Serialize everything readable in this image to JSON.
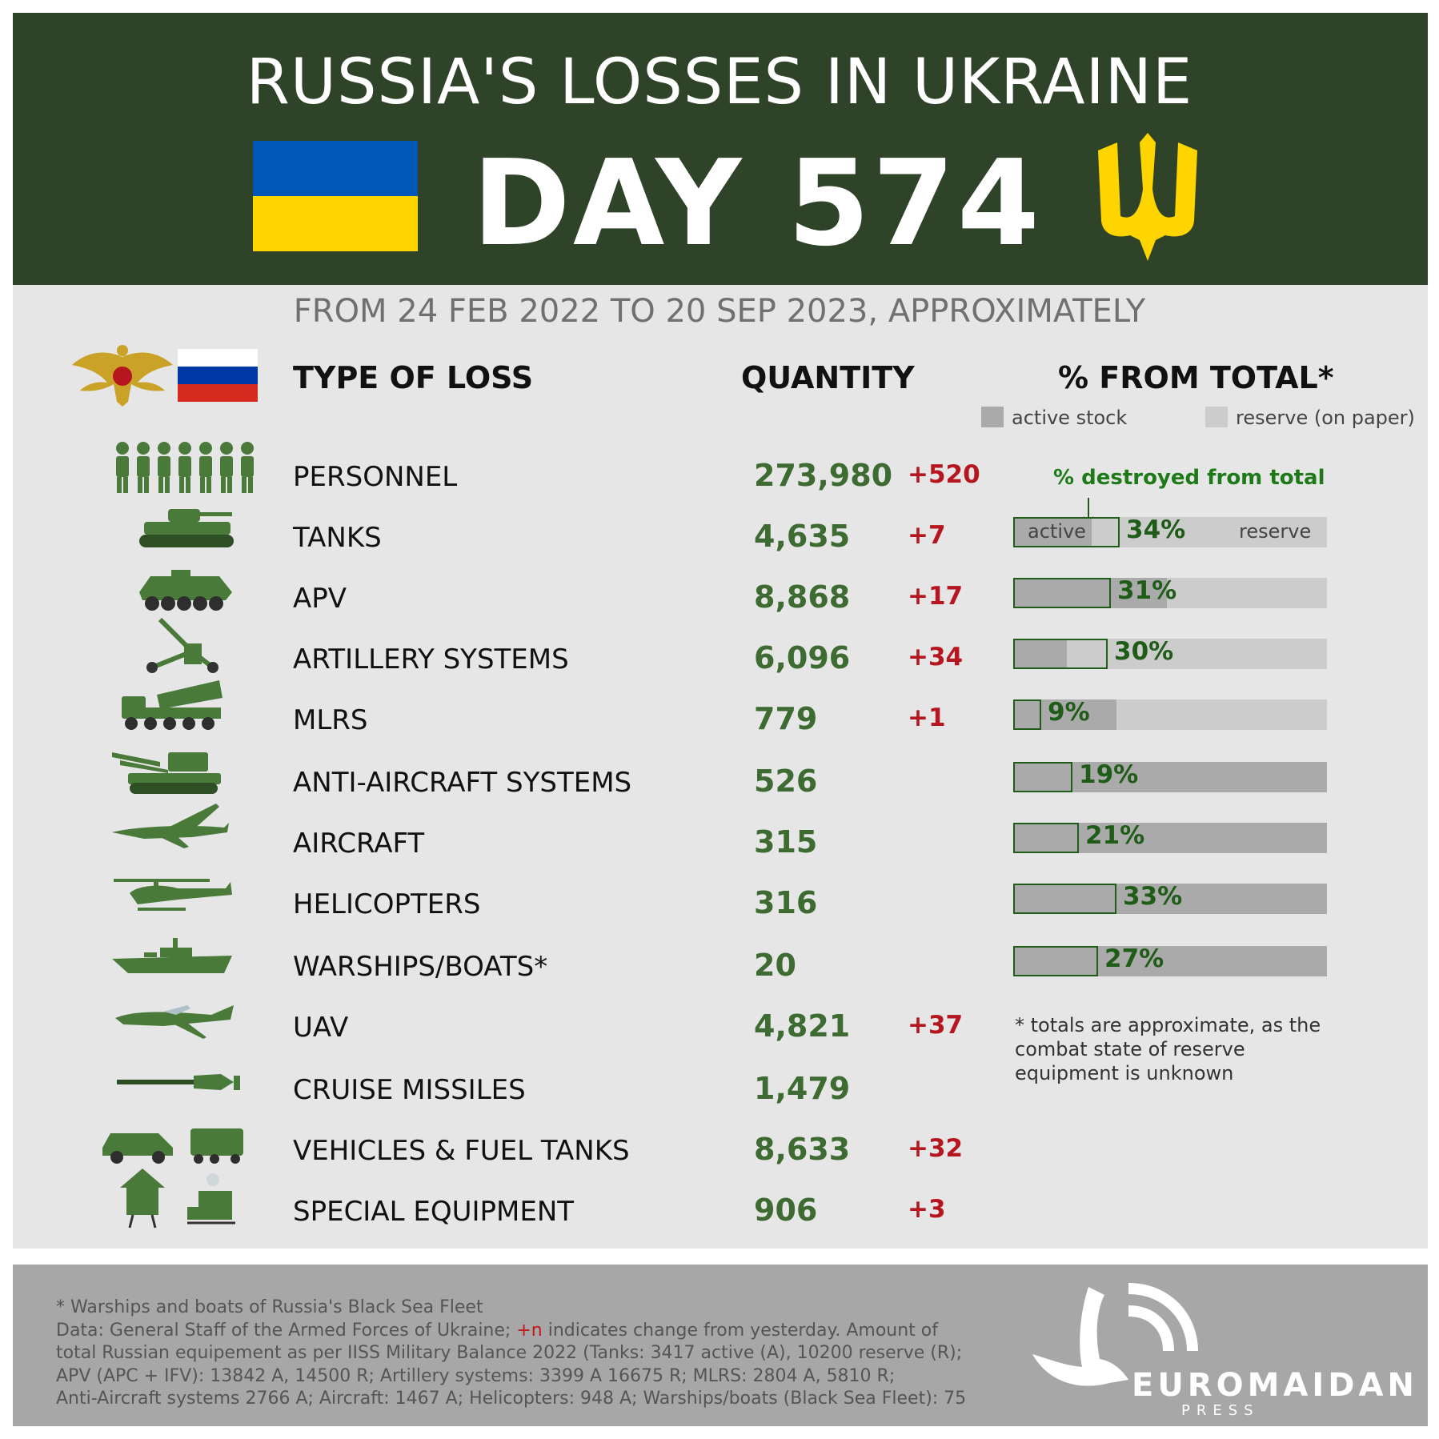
{
  "header": {
    "title": "RUSSIA'S LOSSES IN UKRAINE",
    "day": "DAY 574",
    "subtitle": "FROM 24 FEB 2022 TO 20 SEP 2023, APPROXIMATELY"
  },
  "columns": {
    "type": "TYPE OF LOSS",
    "quantity": "QUANTITY",
    "percent": "% FROM TOTAL*"
  },
  "legend": {
    "active": "active stock",
    "reserve": "reserve (on paper)",
    "destroyed_note": "% destroyed from total",
    "bar_active": "active",
    "bar_reserve": "reserve"
  },
  "colors": {
    "header_bg": "#2e4328",
    "quantity": "#3e6b32",
    "delta": "#b5161f",
    "percent": "#1e5c18",
    "active": "#aaaaaa",
    "reserve": "#cccccc"
  },
  "rows": [
    {
      "label": "PERSONNEL",
      "qty": "273,980",
      "delta": "+520",
      "icon": "soldiers-icon"
    },
    {
      "label": "TANKS",
      "qty": "4,635",
      "delta": "+7",
      "icon": "tank-icon",
      "pct": "34%",
      "destroyed": 0.34,
      "active_share": 0.25
    },
    {
      "label": "APV",
      "qty": "8,868",
      "delta": "+17",
      "icon": "apc-icon",
      "pct": "31%",
      "destroyed": 0.31,
      "active_share": 0.49
    },
    {
      "label": "ARTILLERY SYSTEMS",
      "qty": "6,096",
      "delta": "+34",
      "icon": "artillery-icon",
      "pct": "30%",
      "destroyed": 0.3,
      "active_share": 0.17
    },
    {
      "label": "MLRS",
      "qty": "779",
      "delta": "+1",
      "icon": "mlrs-icon",
      "pct": "9%",
      "destroyed": 0.09,
      "active_share": 0.33
    },
    {
      "label": "ANTI-AIRCRAFT SYSTEMS",
      "qty": "526",
      "delta": "",
      "icon": "anti-aircraft-icon",
      "pct": "19%",
      "destroyed": 0.19,
      "active_share": 1.0
    },
    {
      "label": "AIRCRAFT",
      "qty": "315",
      "delta": "",
      "icon": "aircraft-icon",
      "pct": "21%",
      "destroyed": 0.21,
      "active_share": 1.0
    },
    {
      "label": "HELICOPTERS",
      "qty": "316",
      "delta": "",
      "icon": "helicopter-icon",
      "pct": "33%",
      "destroyed": 0.33,
      "active_share": 1.0
    },
    {
      "label": "WARSHIPS/BOATS*",
      "qty": "20",
      "delta": "",
      "icon": "warship-icon",
      "pct": "27%",
      "destroyed": 0.27,
      "active_share": 1.0
    },
    {
      "label": "UAV",
      "qty": "4,821",
      "delta": "+37",
      "icon": "uav-icon"
    },
    {
      "label": "CRUISE MISSILES",
      "qty": "1,479",
      "delta": "",
      "icon": "cruise-missile-icon"
    },
    {
      "label": "VEHICLES & FUEL TANKS",
      "qty": "8,633",
      "delta": "+32",
      "icon": "vehicles-icon"
    },
    {
      "label": "SPECIAL EQUIPMENT",
      "qty": "906",
      "delta": "+3",
      "icon": "special-equipment-icon"
    }
  ],
  "note": "* totals are approximate, as the combat state of reserve equipment is unknown",
  "footer": {
    "line1": "* Warships and boats of Russia's Black Sea Fleet",
    "line2_pre": "Data: General Staff of the Armed Forces of Ukraine; ",
    "line2_red": "+n",
    "line2_post": " indicates change from yesterday. Amount of",
    "line3": "total Russian equipement as per IISS Military Balance 2022 (Tanks: 3417 active (A), 10200 reserve (R);",
    "line4": "APV (APC + IFV): 13842 A, 14500 R; Artillery systems: 3399 A 16675 R; MLRS: 2804 A, 5810 R;",
    "line5": "Anti-Aircraft systems 2766 A; Aircraft: 1467 A; Helicopters: 948 A; Warships/boats (Black Sea Fleet): 75"
  },
  "brand": {
    "name": "EUROMAIDAN",
    "sub": "PRESS"
  }
}
